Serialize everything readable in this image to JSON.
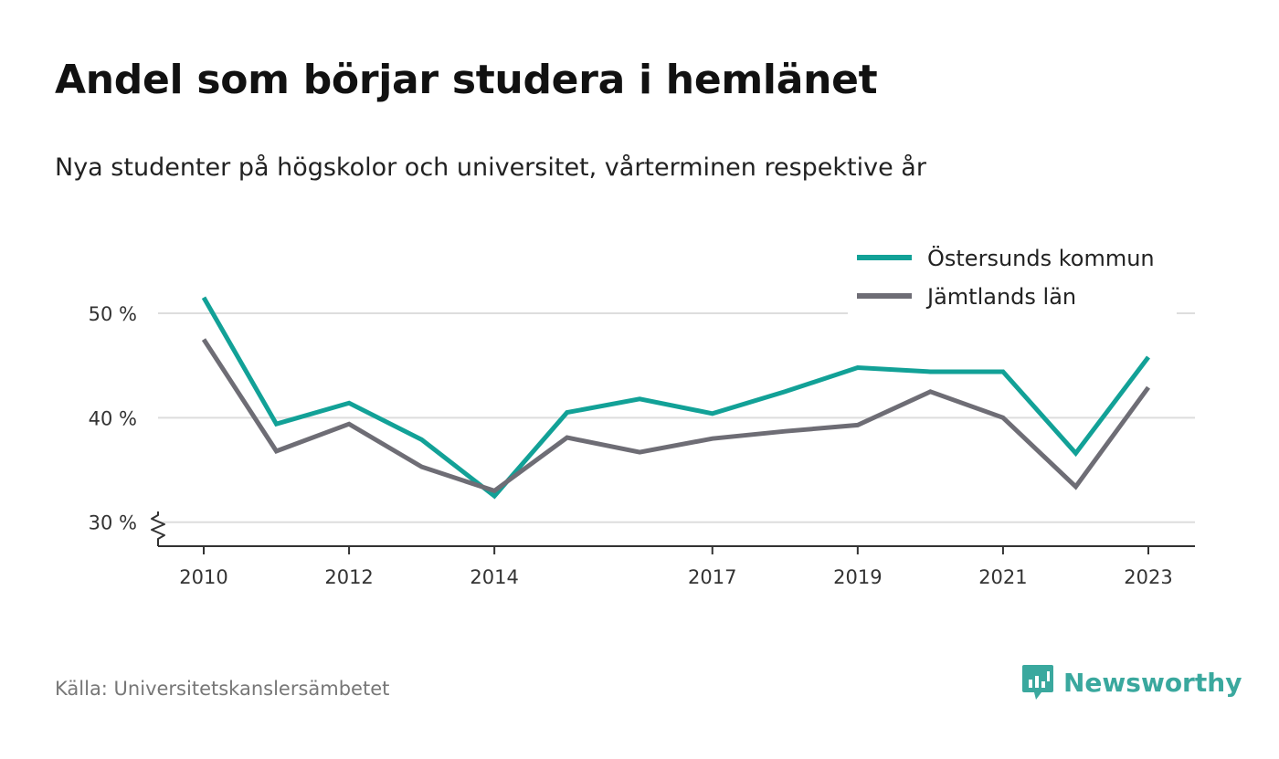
{
  "header": {
    "title": "Andel som börjar studera i hemlänet",
    "subtitle": "Nya studenter på högskolor och universitet, vårterminen respektive år"
  },
  "footer": {
    "source": "Källa: Universitetskanslersämbetet",
    "brand": "Newsworthy"
  },
  "colors": {
    "series_1": "#12a197",
    "series_2": "#6e6d75",
    "grid": "#dddddd",
    "axis": "#333333",
    "brand": "#3aa89e"
  },
  "chart_data": {
    "type": "line",
    "x": [
      2010,
      2011,
      2012,
      2013,
      2014,
      2015,
      2016,
      2017,
      2018,
      2019,
      2020,
      2021,
      2022,
      2023
    ],
    "x_tick_values": [
      2010,
      2012,
      2014,
      2017,
      2019,
      2021,
      2023
    ],
    "x_tick_labels": [
      "2010",
      "2012",
      "2014",
      "2017",
      "2019",
      "2021",
      "2023"
    ],
    "y_tick_values": [
      30,
      40,
      50
    ],
    "y_tick_labels": [
      "30 %",
      "40 %",
      "50 %"
    ],
    "ylim": [
      27.7,
      50
    ],
    "axis_break": true,
    "grid": true,
    "legend_position": "top-right",
    "series": [
      {
        "name": "Östersunds kommun",
        "color": "#12a197",
        "values": [
          51.5,
          39.4,
          41.4,
          37.9,
          32.5,
          40.5,
          41.8,
          40.4,
          42.5,
          44.8,
          44.4,
          44.4,
          36.6,
          45.8
        ]
      },
      {
        "name": "Jämtlands län",
        "color": "#6e6d75",
        "values": [
          47.5,
          36.8,
          39.4,
          35.3,
          33.0,
          38.1,
          36.7,
          38.0,
          38.7,
          39.3,
          42.5,
          40.0,
          33.4,
          42.9
        ]
      }
    ]
  }
}
